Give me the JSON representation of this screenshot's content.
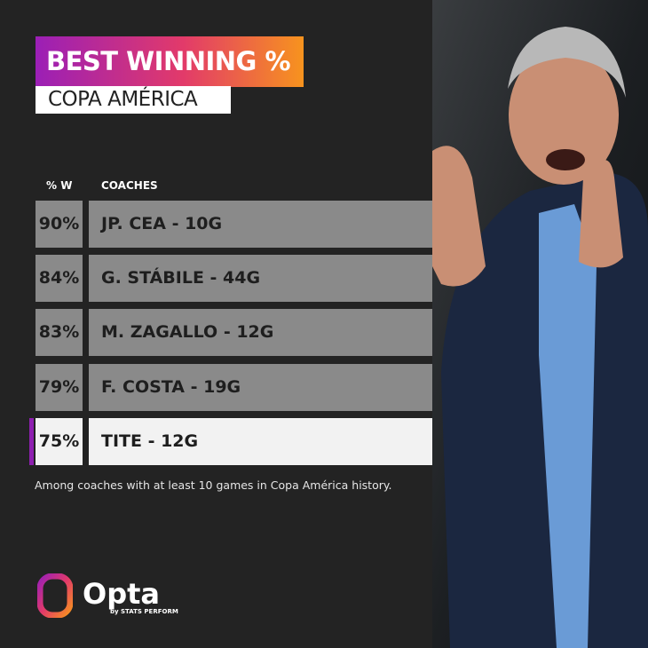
{
  "header": {
    "title": "BEST WINNING %",
    "subtitle": "COPA AMÉRICA"
  },
  "table": {
    "columns": [
      "% W",
      "COACHES"
    ],
    "rows": [
      [
        "90%",
        "JP. CEA - 10G"
      ],
      [
        "84%",
        "G. STÁBILE - 44G"
      ],
      [
        "83%",
        "M. ZAGALLO - 12G"
      ],
      [
        "79%",
        "F. COSTA - 19G"
      ],
      [
        "75%",
        "TITE - 12G"
      ]
    ]
  },
  "footnote": "Among coaches with at least 10 games in Copa América history.",
  "logo": {
    "name": "Opta",
    "tagline": "by STATS PERFORM"
  }
}
